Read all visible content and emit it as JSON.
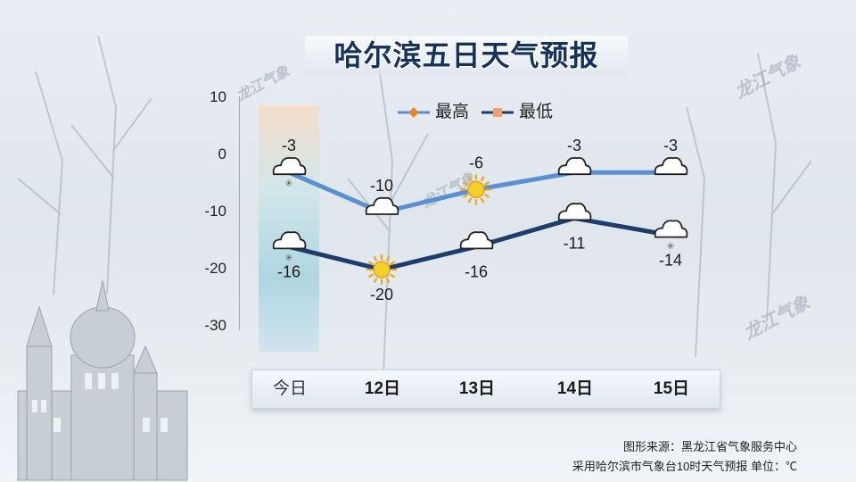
{
  "title": "哈尔滨五日天气预报",
  "watermark": "龙江气象",
  "legend": {
    "high": "最高",
    "low": "最低"
  },
  "colors": {
    "high_line": "#5b8fd0",
    "low_line": "#1f3d6b",
    "title": "#15325a"
  },
  "footer": {
    "source": "图形来源：黑龙江省气象服务中心",
    "note": "采用哈尔滨市气象台10时天气预报 单位：℃"
  },
  "chart_data": {
    "type": "line",
    "categories": [
      "今日",
      "12日",
      "13日",
      "14日",
      "15日"
    ],
    "series": [
      {
        "name": "最高",
        "values": [
          -3,
          -10,
          -6,
          -3,
          -3
        ],
        "icons": [
          "cloud-snow-icon",
          "cloud-icon",
          "sun-icon",
          "cloud-icon",
          "cloud-icon"
        ]
      },
      {
        "name": "最低",
        "values": [
          -16,
          -20,
          -16,
          -11,
          -14
        ],
        "icons": [
          "cloud-snow-icon",
          "sun-icon",
          "cloud-icon",
          "cloud-icon",
          "cloud-snow-icon"
        ]
      }
    ],
    "ylim": [
      -30,
      10
    ],
    "yticks": [
      10,
      0,
      -10,
      -20,
      -30
    ],
    "legend_position": "top",
    "highlight_category": "今日"
  }
}
